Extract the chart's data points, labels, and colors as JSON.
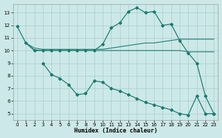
{
  "background_color": "#cce8e8",
  "grid_color": "#aacccc",
  "line_color": "#1a7a6e",
  "xlabel": "Humidex (Indice chaleur)",
  "ylim": [
    4.5,
    13.7
  ],
  "xlim": [
    -0.5,
    23.5
  ],
  "yticks": [
    5,
    6,
    7,
    8,
    9,
    10,
    11,
    12,
    13
  ],
  "xticks": [
    0,
    1,
    2,
    3,
    4,
    5,
    6,
    7,
    8,
    9,
    10,
    11,
    12,
    13,
    14,
    15,
    16,
    17,
    18,
    19,
    20,
    21,
    22,
    23
  ],
  "upper_curve_x": [
    0,
    1,
    2,
    3,
    4,
    5,
    6,
    7,
    8,
    9,
    10,
    11,
    12,
    13,
    14,
    15,
    16,
    17,
    18,
    19,
    20,
    21,
    22,
    23
  ],
  "upper_curve_y": [
    11.9,
    10.6,
    10.0,
    10.0,
    10.0,
    10.0,
    10.0,
    10.0,
    10.0,
    10.0,
    10.5,
    11.8,
    12.2,
    13.1,
    13.4,
    13.0,
    13.1,
    12.0,
    12.1,
    10.8,
    9.8,
    9.0,
    6.4,
    5.0
  ],
  "lower_curve_x": [
    3,
    4,
    5,
    6,
    7,
    8,
    9,
    10,
    11,
    12,
    13,
    14,
    15,
    16,
    17,
    18,
    19,
    20,
    21,
    22,
    23
  ],
  "lower_curve_y": [
    9.0,
    8.1,
    7.8,
    7.3,
    6.5,
    6.6,
    7.6,
    7.5,
    7.0,
    6.8,
    6.5,
    6.2,
    5.9,
    5.7,
    5.5,
    5.3,
    5.0,
    4.9,
    6.4,
    5.0,
    5.0
  ],
  "flat_line1_x": [
    1,
    2,
    3,
    4,
    5,
    6,
    7,
    8,
    9,
    10,
    11,
    12,
    13,
    14,
    15,
    16,
    17,
    18,
    19,
    20,
    21,
    22,
    23
  ],
  "flat_line1_y": [
    10.6,
    10.2,
    10.1,
    10.1,
    10.1,
    10.1,
    10.1,
    10.1,
    10.1,
    10.1,
    10.2,
    10.3,
    10.4,
    10.5,
    10.6,
    10.6,
    10.7,
    10.8,
    10.9,
    10.9,
    10.9,
    10.9,
    10.9
  ],
  "flat_line2_x": [
    1,
    2,
    3,
    4,
    5,
    6,
    7,
    8,
    9,
    10,
    11,
    12,
    13,
    14,
    15,
    16,
    17,
    18,
    19,
    20,
    21,
    22,
    23
  ],
  "flat_line2_y": [
    10.6,
    10.05,
    10.0,
    10.0,
    10.0,
    10.0,
    10.0,
    10.0,
    10.0,
    10.0,
    10.0,
    10.0,
    10.0,
    10.0,
    10.0,
    10.0,
    10.0,
    10.0,
    10.0,
    9.9,
    9.9,
    9.9,
    9.9
  ]
}
